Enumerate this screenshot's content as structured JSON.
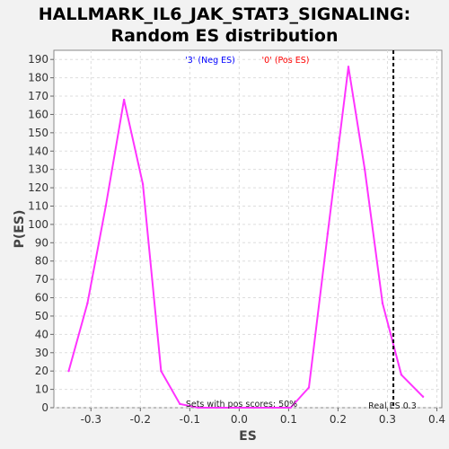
{
  "chart_data": {
    "type": "line",
    "title": "HALLMARK_IL6_JAK_STAT3_SIGNALING:",
    "subtitle": "Random ES distribution",
    "xlabel": "ES",
    "ylabel": "P(ES)",
    "xlim": [
      -0.375,
      0.41
    ],
    "ylim": [
      0,
      195
    ],
    "xticks": [
      -0.3,
      -0.2,
      -0.1,
      0.0,
      0.1,
      0.2,
      0.3,
      0.4
    ],
    "xtick_labels": [
      "-0.3",
      "-0.2",
      "-0.1",
      "0.0",
      "0.1",
      "0.2",
      "0.3",
      "0.4"
    ],
    "yticks": [
      0,
      10,
      20,
      30,
      40,
      50,
      60,
      70,
      80,
      90,
      100,
      110,
      120,
      130,
      140,
      150,
      160,
      170,
      180,
      190
    ],
    "ytick_labels": [
      "0",
      "10",
      "20",
      "30",
      "40",
      "50",
      "60",
      "70",
      "80",
      "90",
      "100",
      "110",
      "120",
      "130",
      "140",
      "150",
      "160",
      "170",
      "180",
      "190"
    ],
    "grid": true,
    "series": [
      {
        "color": "#ff33ff",
        "x": [
          -0.345,
          -0.307,
          -0.27,
          -0.233,
          -0.195,
          -0.158,
          -0.12,
          -0.083,
          -0.046,
          -0.008,
          0.029,
          0.067,
          0.104,
          0.141,
          0.179,
          0.221,
          0.254,
          0.29,
          0.328,
          0.372
        ],
        "y": [
          20,
          57,
          110,
          168,
          122,
          20,
          2,
          0,
          0,
          0,
          0,
          0,
          0,
          11,
          95,
          186,
          130,
          57,
          18,
          6
        ]
      }
    ],
    "annotations": {
      "neg_es": "'3' (Neg ES)",
      "pos_es": "'0' (Pos ES)",
      "pos_scores": "Sets with pos scores: 50%",
      "real_es_label": "Real ES 0.3",
      "real_es_value": 0.312,
      "neg_color": "#0000ff",
      "pos_color": "#ff0000"
    }
  }
}
